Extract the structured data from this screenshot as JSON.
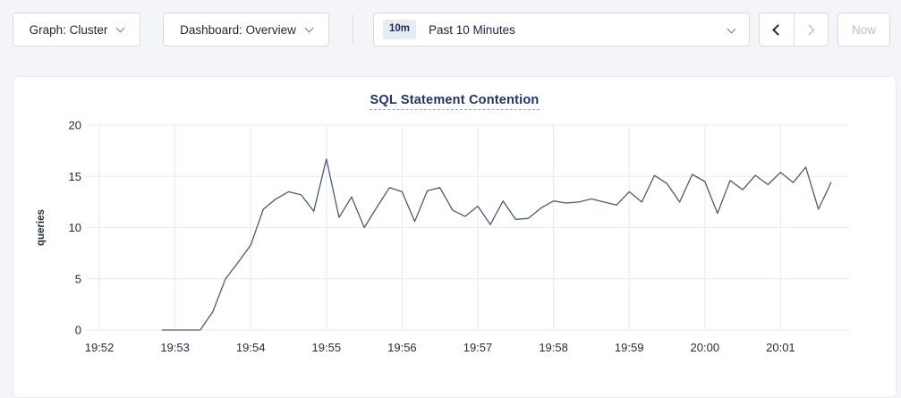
{
  "colors": {
    "page_bg": "#f3f5f9",
    "panel_bg": "#ffffff",
    "grid": "#e8eaee",
    "axis_text": "#242d3d",
    "title_text": "#1f3364",
    "line": "#4c5a75",
    "enabled_arrow": "#1d2848",
    "disabled_text": "#b9c0cc"
  },
  "icons": {
    "graph_dropdown": "chevron-down-icon",
    "dashboard_dropdown": "chevron-down-icon",
    "time_range_dropdown": "chevron-down-icon",
    "back": "chevron-left-icon",
    "forward": "chevron-right-icon"
  },
  "toolbar": {
    "graph_dropdown_label": "Graph: Cluster",
    "dashboard_dropdown_label": "Dashboard: Overview",
    "time_range": {
      "badge": "10m",
      "label": "Past 10 Minutes"
    },
    "now_label": "Now"
  },
  "chart_data": {
    "type": "line",
    "title": "SQL Statement Contention",
    "xlabel": "",
    "ylabel": "queries",
    "ylim": [
      0,
      20
    ],
    "y_ticks": [
      0,
      5,
      10,
      15,
      20
    ],
    "x_ticks": [
      "19:52",
      "19:53",
      "19:54",
      "19:55",
      "19:56",
      "19:57",
      "19:58",
      "19:59",
      "20:00",
      "20:01"
    ],
    "grid": true,
    "legend": "none",
    "series": [
      {
        "name": "queries",
        "color": "#4c5a75",
        "points": [
          [
            "19:52:50",
            0
          ],
          [
            "19:53:00",
            0
          ],
          [
            "19:53:10",
            0
          ],
          [
            "19:53:20",
            0
          ],
          [
            "19:53:30",
            1.8
          ],
          [
            "19:53:40",
            5.0
          ],
          [
            "19:53:50",
            6.6
          ],
          [
            "19:54:00",
            8.3
          ],
          [
            "19:54:10",
            11.8
          ],
          [
            "19:54:20",
            12.8
          ],
          [
            "19:54:30",
            13.5
          ],
          [
            "19:54:40",
            13.2
          ],
          [
            "19:54:50",
            11.6
          ],
          [
            "19:55:00",
            16.7
          ],
          [
            "19:55:10",
            11.0
          ],
          [
            "19:55:20",
            13.0
          ],
          [
            "19:55:30",
            10.0
          ],
          [
            "19:55:40",
            12.0
          ],
          [
            "19:55:50",
            13.9
          ],
          [
            "19:56:00",
            13.5
          ],
          [
            "19:56:10",
            10.6
          ],
          [
            "19:56:20",
            13.6
          ],
          [
            "19:56:30",
            13.9
          ],
          [
            "19:56:40",
            11.7
          ],
          [
            "19:56:50",
            11.1
          ],
          [
            "19:57:00",
            12.1
          ],
          [
            "19:57:10",
            10.3
          ],
          [
            "19:57:20",
            12.6
          ],
          [
            "19:57:30",
            10.8
          ],
          [
            "19:57:40",
            10.9
          ],
          [
            "19:57:50",
            11.9
          ],
          [
            "19:58:00",
            12.6
          ],
          [
            "19:58:10",
            12.4
          ],
          [
            "19:58:20",
            12.5
          ],
          [
            "19:58:30",
            12.8
          ],
          [
            "19:58:40",
            12.5
          ],
          [
            "19:58:50",
            12.2
          ],
          [
            "19:59:00",
            13.5
          ],
          [
            "19:59:10",
            12.5
          ],
          [
            "19:59:20",
            15.1
          ],
          [
            "19:59:30",
            14.3
          ],
          [
            "19:59:40",
            12.5
          ],
          [
            "19:59:50",
            15.2
          ],
          [
            "20:00:00",
            14.5
          ],
          [
            "20:00:10",
            11.4
          ],
          [
            "20:00:20",
            14.6
          ],
          [
            "20:00:30",
            13.7
          ],
          [
            "20:00:40",
            15.1
          ],
          [
            "20:00:50",
            14.2
          ],
          [
            "20:01:00",
            15.4
          ],
          [
            "20:01:10",
            14.4
          ],
          [
            "20:01:20",
            15.9
          ],
          [
            "20:01:30",
            11.8
          ],
          [
            "20:01:40",
            14.4
          ]
        ]
      }
    ]
  }
}
